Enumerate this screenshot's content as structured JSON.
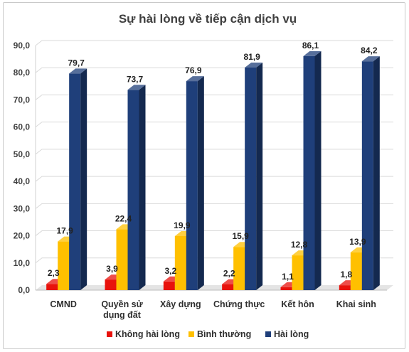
{
  "chart_data": {
    "type": "bar",
    "title": "Sự hài lòng về tiếp cận dịch vụ",
    "categories": [
      "CMND",
      "Quyền sử dụng đất",
      "Xây dựng",
      "Chứng thực",
      "Kết hôn",
      "Khai sinh"
    ],
    "category_lines": [
      [
        "CMND"
      ],
      [
        "Quyền sử",
        "dụng đất"
      ],
      [
        "Xây dựng"
      ],
      [
        "Chứng thực"
      ],
      [
        "Kết hôn"
      ],
      [
        "Khai sinh"
      ]
    ],
    "series": [
      {
        "name": "Không hài lòng",
        "color": "#e8120c",
        "values": [
          2.3,
          3.9,
          3.2,
          2.2,
          1.1,
          1.8
        ],
        "labels": [
          "2,3",
          "3,9",
          "3,2",
          "2,2",
          "1,1",
          "1,8"
        ]
      },
      {
        "name": "Bình thường",
        "color": "#ffc000",
        "values": [
          17.9,
          22.4,
          19.9,
          15.9,
          12.8,
          13.9
        ],
        "labels": [
          "17,9",
          "22,4",
          "19,9",
          "15,9",
          "12,8",
          "13,9"
        ]
      },
      {
        "name": "Hài lòng",
        "color": "#1f3f7a",
        "values": [
          79.7,
          73.7,
          76.9,
          81.9,
          86.1,
          84.2
        ],
        "labels": [
          "79,7",
          "73,7",
          "76,9",
          "81,9",
          "86,1",
          "84,2"
        ]
      }
    ],
    "y_ticks": [
      "0,0",
      "10,0",
      "20,0",
      "30,0",
      "40,0",
      "50,0",
      "60,0",
      "70,0",
      "80,0",
      "90,0"
    ],
    "ylim": [
      0,
      90
    ],
    "grid": true,
    "legend_position": "bottom",
    "style": "3d-clustered-column"
  }
}
